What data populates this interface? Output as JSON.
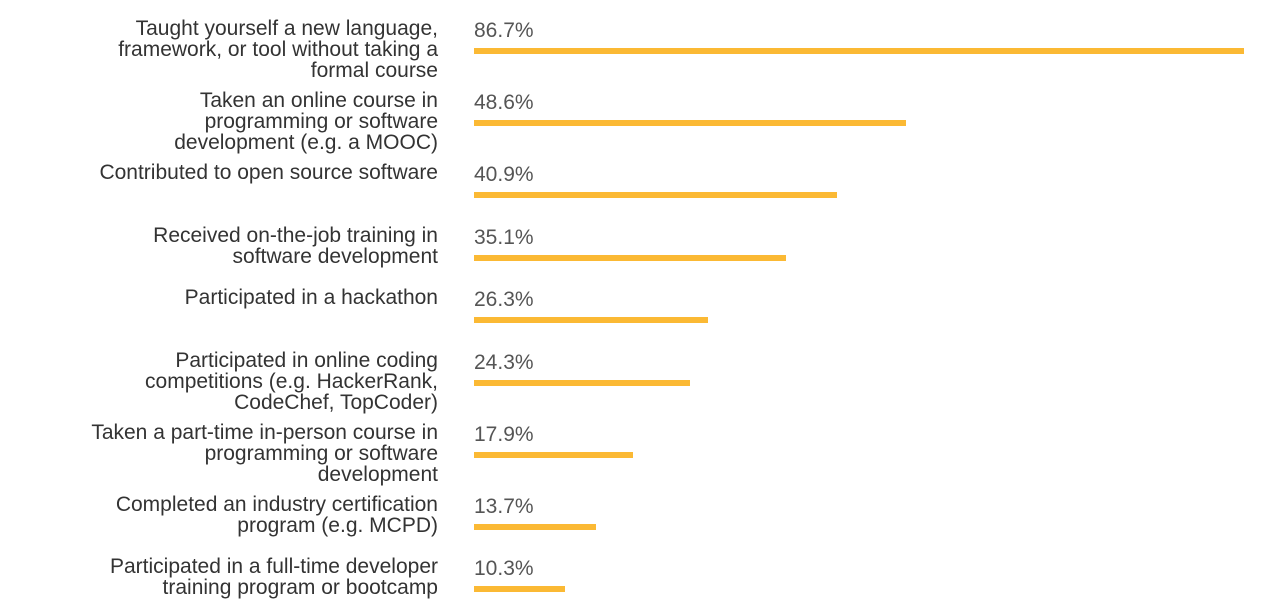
{
  "chart_data": {
    "type": "bar",
    "orientation": "horizontal",
    "categories": [
      "Taught yourself a new language,\nframework, or tool without taking a\nformal course",
      "Taken an online course in\nprogramming or software\ndevelopment (e.g. a MOOC)",
      "Contributed to open source software",
      "Received on-the-job training in\nsoftware development",
      "Participated in a hackathon",
      "Participated in online coding\ncompetitions (e.g. HackerRank,\nCodeChef, TopCoder)",
      "Taken a part-time in-person course in\nprogramming or software\ndevelopment",
      "Completed an industry certification\nprogram (e.g. MCPD)",
      "Participated in a full-time developer\ntraining program or bootcamp"
    ],
    "values": [
      86.7,
      48.6,
      40.9,
      35.1,
      26.3,
      24.3,
      17.9,
      13.7,
      10.3
    ],
    "value_labels": [
      "86.7%",
      "48.6%",
      "40.9%",
      "35.1%",
      "26.3%",
      "24.3%",
      "17.9%",
      "13.7%",
      "10.3%"
    ],
    "unit": "%",
    "xlim": [
      0,
      86.7
    ],
    "grid": false,
    "legend": "none",
    "bar_color": "#FBB934"
  }
}
